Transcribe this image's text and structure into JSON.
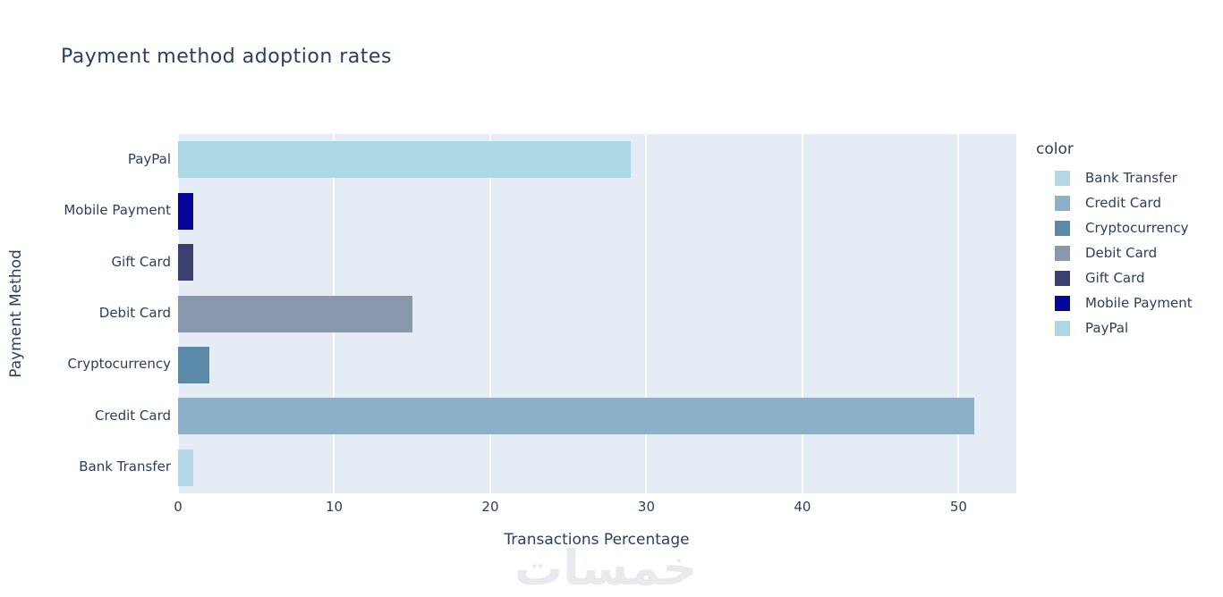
{
  "title": "Payment method adoption rates",
  "watermark_text": "خمسات",
  "chart_data": {
    "type": "bar",
    "orientation": "horizontal",
    "title": "Payment method adoption rates",
    "xlabel": "Transactions Percentage",
    "ylabel": "Payment Method",
    "xlim": [
      0,
      53.7
    ],
    "xticks": [
      0,
      10,
      20,
      30,
      40,
      50
    ],
    "grid": true,
    "plot_bgcolor": "#e5ecf6",
    "gridline_color": "#ffffff",
    "text_color": "#2a3f5f",
    "bars_top_to_bottom": [
      {
        "category": "PayPal",
        "value": 29,
        "color": "#acd8e5"
      },
      {
        "category": "Mobile Payment",
        "value": 1,
        "color": "#05059a"
      },
      {
        "category": "Gift Card",
        "value": 1,
        "color": "#3c406e"
      },
      {
        "category": "Debit Card",
        "value": 15,
        "color": "#8899ac"
      },
      {
        "category": "Cryptocurrency",
        "value": 2,
        "color": "#5b8aa9"
      },
      {
        "category": "Credit Card",
        "value": 51,
        "color": "#8ab0ca"
      },
      {
        "category": "Bank Transfer",
        "value": 1,
        "color": "#b2d8e7"
      }
    ],
    "legend": {
      "title": "color",
      "position": "right",
      "entries": [
        {
          "label": "Bank Transfer",
          "color": "#b2d8e7"
        },
        {
          "label": "Credit Card",
          "color": "#8ab0ca"
        },
        {
          "label": "Cryptocurrency",
          "color": "#5b8aa9"
        },
        {
          "label": "Debit Card",
          "color": "#8899ac"
        },
        {
          "label": "Gift Card",
          "color": "#3c406e"
        },
        {
          "label": "Mobile Payment",
          "color": "#05059a"
        },
        {
          "label": "PayPal",
          "color": "#acd8e5"
        }
      ]
    }
  }
}
